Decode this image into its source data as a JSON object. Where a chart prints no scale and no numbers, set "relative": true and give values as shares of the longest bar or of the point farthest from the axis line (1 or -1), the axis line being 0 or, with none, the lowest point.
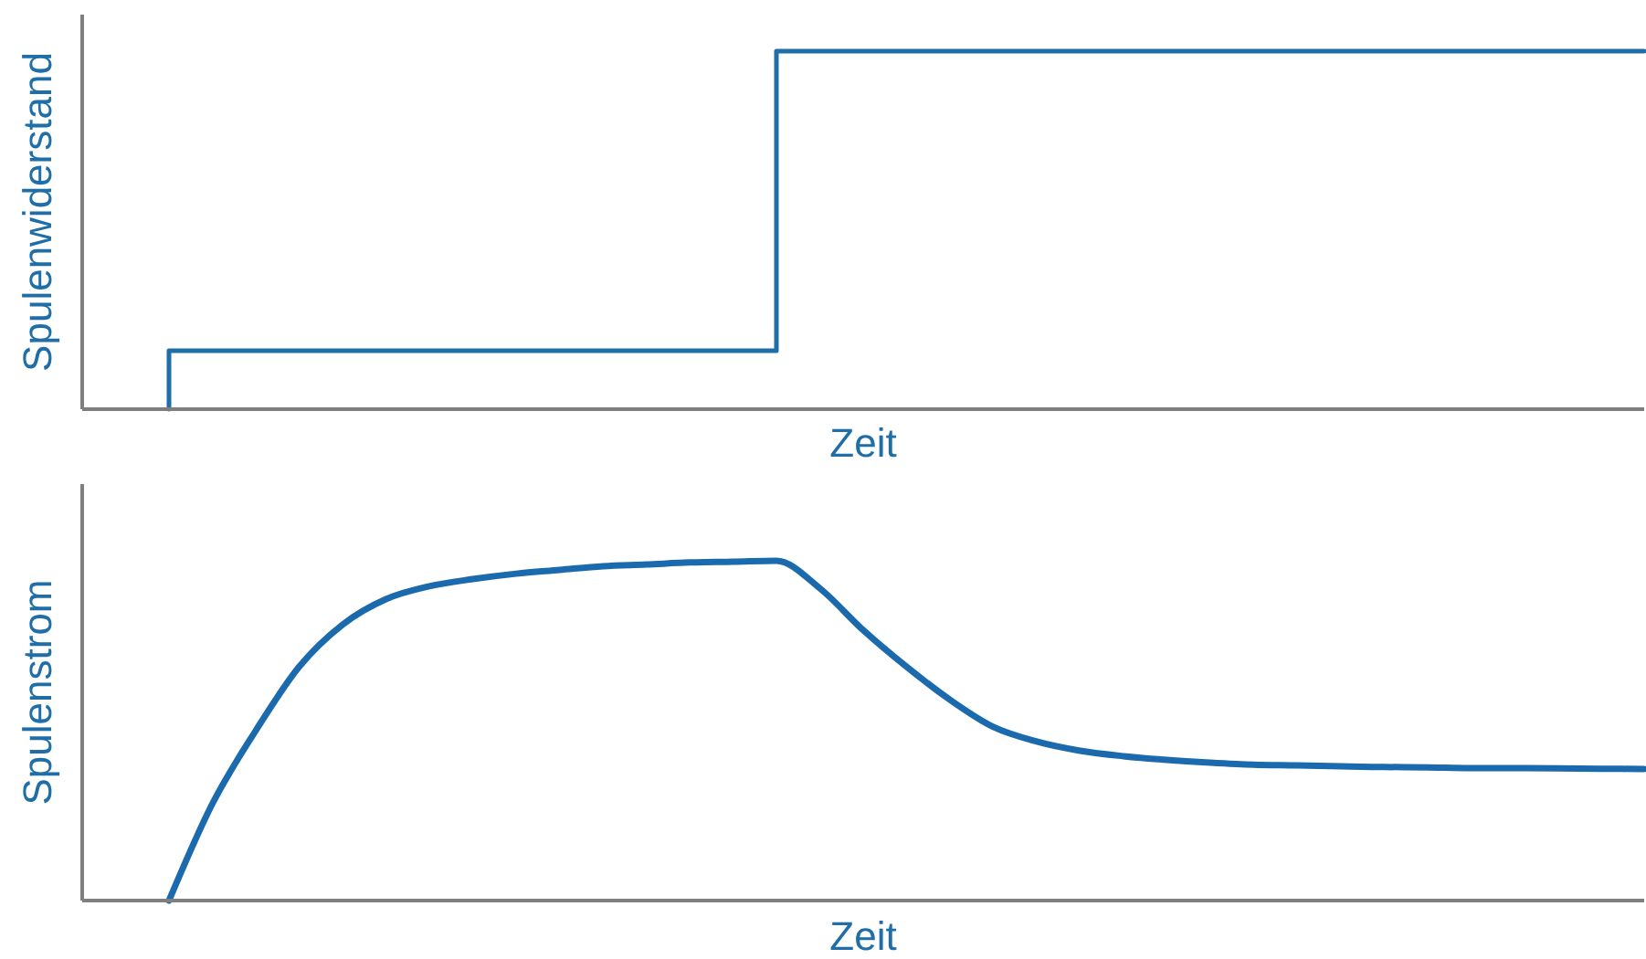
{
  "chart_data": [
    {
      "type": "step",
      "xlabel": "Zeit",
      "ylabel": "Spulenwiderstand",
      "relative": true,
      "color": "#1f6ea8",
      "categories": [
        null,
        null,
        null,
        null,
        null,
        null,
        null,
        null,
        null,
        null,
        null,
        null,
        null,
        null,
        null,
        null,
        null,
        null,
        null,
        null,
        null,
        null,
        null,
        null,
        null,
        null,
        null,
        null,
        null,
        null,
        null,
        null,
        null,
        null,
        null,
        null,
        null
      ],
      "values": [
        null,
        null,
        0,
        0.163,
        0.163,
        0.163,
        0.163,
        0.163,
        0.163,
        0.163,
        0.163,
        0.163,
        0.163,
        0.163,
        0.163,
        0.163,
        0.163,
        1,
        1,
        1,
        1,
        1,
        1,
        1,
        1,
        1,
        1,
        1,
        1,
        1,
        1,
        1,
        1,
        1,
        1,
        1,
        1
      ]
    },
    {
      "type": "line",
      "xlabel": "Zeit",
      "ylabel": "Spulenstrom",
      "relative": true,
      "color": "#1a6aad",
      "categories": [
        null,
        null,
        null,
        null,
        null,
        null,
        null,
        null,
        null,
        null,
        null,
        null,
        null,
        null,
        null,
        null,
        null,
        null,
        null,
        null,
        null,
        null,
        null,
        null,
        null,
        null,
        null,
        null,
        null,
        null,
        null,
        null,
        null,
        null,
        null,
        null,
        null
      ],
      "values": [
        null,
        null,
        0,
        0.285,
        0.5,
        0.688,
        0.812,
        0.887,
        0.925,
        0.946,
        0.962,
        0.973,
        0.984,
        0.989,
        0.995,
        0.997,
        1,
        0.919,
        0.796,
        0.688,
        0.591,
        0.511,
        0.468,
        0.441,
        0.425,
        0.414,
        0.406,
        0.4,
        0.398,
        0.395,
        0.393,
        0.392,
        0.39,
        0.39,
        0.389,
        0.388,
        0.387
      ]
    }
  ]
}
